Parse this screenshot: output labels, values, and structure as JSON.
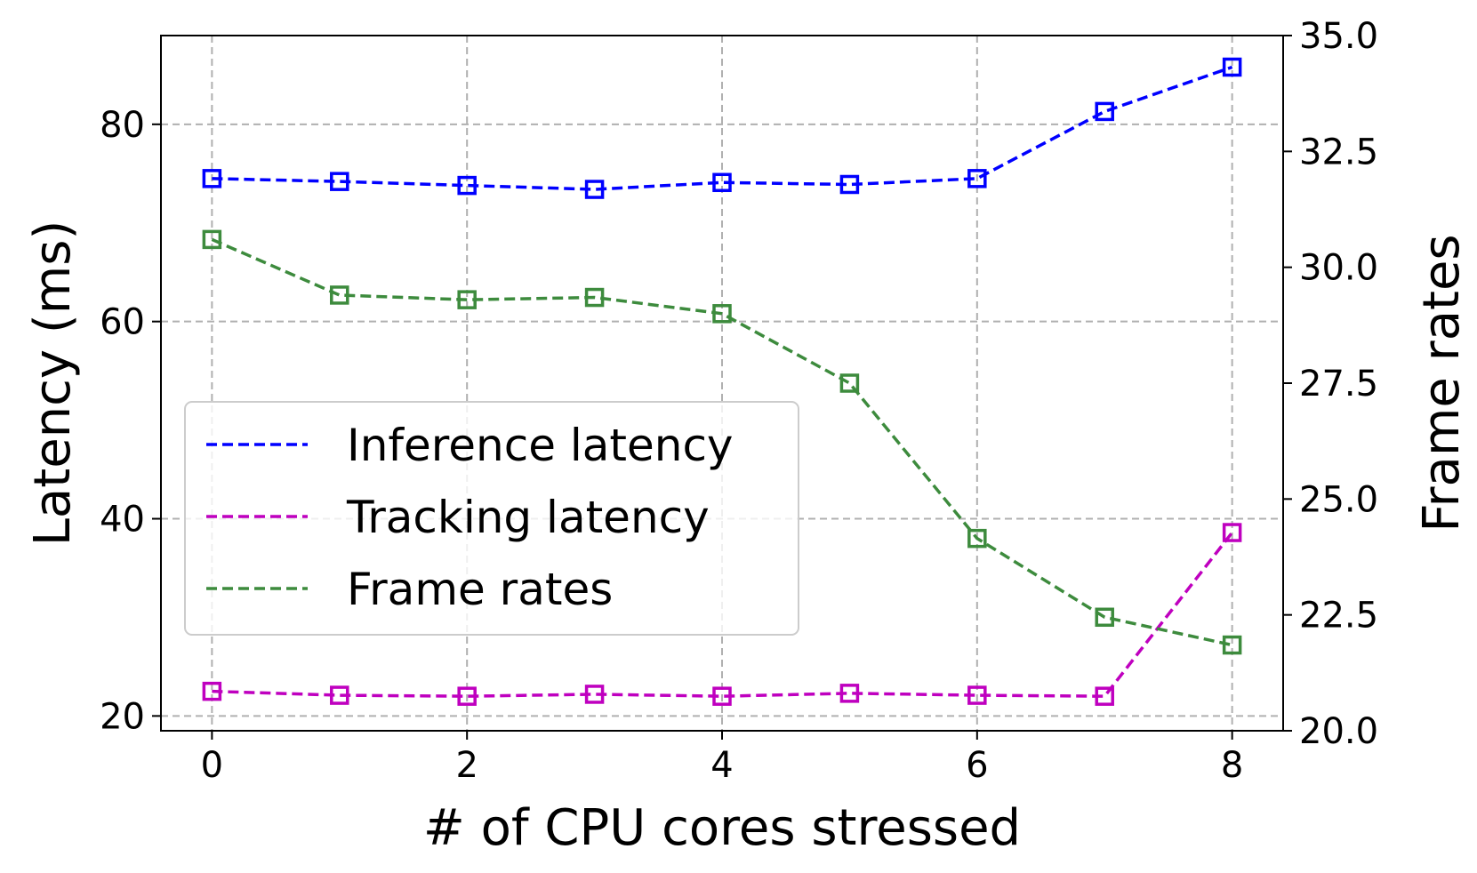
{
  "chart_data": {
    "type": "line",
    "title": "",
    "xlabel": "# of CPU cores stressed",
    "ylabel": "Latency (ms)",
    "ylabel_right": "Frame rates",
    "x": [
      0,
      1,
      2,
      3,
      4,
      5,
      6,
      7,
      8
    ],
    "x_ticks": [
      "0",
      "2",
      "4",
      "6",
      "8"
    ],
    "xlim": [
      -0.4,
      8.4
    ],
    "ylim": [
      18.5,
      89
    ],
    "y_ticks": [
      "20",
      "40",
      "60",
      "80"
    ],
    "ylim_right": [
      20,
      35
    ],
    "y_ticks_right": [
      "20.0",
      "22.5",
      "25.0",
      "27.5",
      "30.0",
      "32.5",
      "35.0"
    ],
    "grid": true,
    "legend_position": "center-left",
    "series": [
      {
        "name": "Inference latency",
        "axis": "left",
        "color": "#0000ff",
        "marker": "square",
        "line_style": "dashed",
        "values": [
          74.5,
          74.2,
          73.8,
          73.4,
          74.1,
          73.9,
          74.5,
          81.3,
          85.8
        ]
      },
      {
        "name": "Tracking latency",
        "axis": "left",
        "color": "#bf00bf",
        "marker": "square",
        "line_style": "dashed",
        "values": [
          22.5,
          22.1,
          22.0,
          22.2,
          22.0,
          22.3,
          22.1,
          22.0,
          38.6
        ]
      },
      {
        "name": "Frame rates",
        "axis": "right",
        "color": "#3d8b3d",
        "marker": "square",
        "line_style": "dashed",
        "values": [
          30.6,
          29.4,
          29.3,
          29.35,
          29.0,
          27.5,
          24.15,
          22.45,
          21.85
        ]
      }
    ]
  }
}
